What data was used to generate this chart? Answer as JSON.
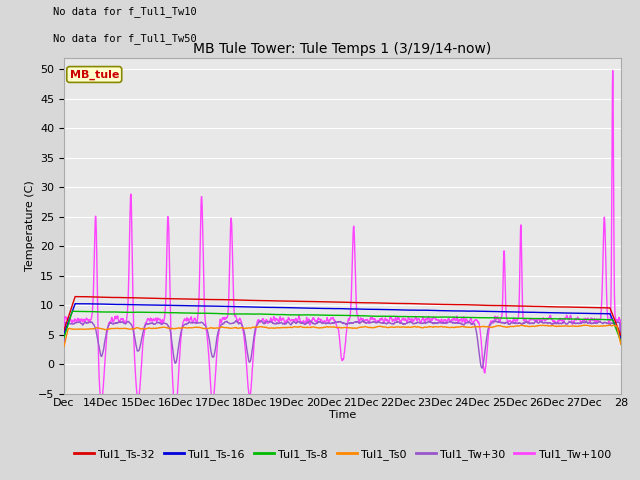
{
  "title": "MB Tule Tower: Tule Temps 1 (3/19/14-now)",
  "xlabel": "Time",
  "ylabel": "Temperature (C)",
  "ylim": [
    -5,
    52
  ],
  "yticks": [
    -5,
    0,
    5,
    10,
    15,
    20,
    25,
    30,
    35,
    40,
    45,
    50
  ],
  "x_start": 13,
  "x_end": 28,
  "xtick_labels": [
    "Dec",
    "14Dec",
    "15Dec",
    "16Dec",
    "17Dec",
    "18Dec",
    "19Dec",
    "20Dec",
    "21Dec",
    "22Dec",
    "23Dec",
    "24Dec",
    "25Dec",
    "26Dec",
    "27Dec",
    "28"
  ],
  "xtick_positions": [
    13,
    14,
    15,
    16,
    17,
    18,
    19,
    20,
    21,
    22,
    23,
    24,
    25,
    26,
    27,
    28
  ],
  "figure_bg": "#d8d8d8",
  "plot_bg": "#e8e8e8",
  "no_data_texts": [
    "No data for f_Tul1_Tw10",
    "No data for f_Tul1_Tw50"
  ],
  "mb_tule_legend": "MB_tule",
  "mb_tule_box_facecolor": "#ffffcc",
  "mb_tule_box_edgecolor": "#888800",
  "mb_tule_text_color": "#cc0000",
  "legend_entries": [
    {
      "label": "Tul1_Ts-32",
      "color": "#dd0000"
    },
    {
      "label": "Tul1_Ts-16",
      "color": "#0000dd"
    },
    {
      "label": "Tul1_Ts-8",
      "color": "#00bb00"
    },
    {
      "label": "Tul1_Ts0",
      "color": "#ff8800"
    },
    {
      "label": "Tul1_Tw+30",
      "color": "#9955cc"
    },
    {
      "label": "Tul1_Tw+100",
      "color": "#ff44ff"
    }
  ],
  "grid_color": "#ffffff",
  "title_fontsize": 10,
  "axis_label_fontsize": 8,
  "tick_fontsize": 8,
  "legend_fontsize": 8
}
